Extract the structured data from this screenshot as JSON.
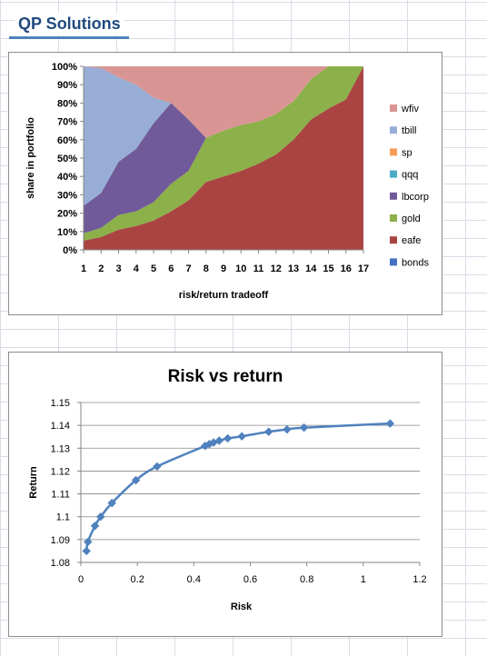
{
  "header": {
    "title": "QP Solutions"
  },
  "chart_data": [
    {
      "type": "area",
      "title": "",
      "xlabel": "risk/return tradeoff",
      "ylabel": "share in portfolio",
      "x": [
        1,
        2,
        3,
        4,
        5,
        6,
        7,
        8,
        9,
        10,
        11,
        12,
        13,
        14,
        15,
        16,
        17
      ],
      "ylim": [
        0,
        100
      ],
      "yticks": [
        "0%",
        "10%",
        "20%",
        "30%",
        "40%",
        "50%",
        "60%",
        "70%",
        "80%",
        "90%",
        "100%"
      ],
      "stack_order": [
        "bonds",
        "eafe",
        "gold",
        "lbcorp",
        "qqq",
        "sp",
        "tbill",
        "wfiv"
      ],
      "legend_order": [
        "wfiv",
        "tbill",
        "sp",
        "qqq",
        "lbcorp",
        "gold",
        "eafe",
        "bonds"
      ],
      "legend_position": "right",
      "series": [
        {
          "name": "bonds",
          "color": "#4472c4",
          "values": [
            0,
            0,
            0,
            0,
            0,
            0,
            0,
            0,
            0,
            0,
            0,
            0,
            0,
            0,
            0,
            0,
            0
          ]
        },
        {
          "name": "eafe",
          "color": "#a94442",
          "values": [
            5,
            7,
            11,
            13,
            16,
            21,
            27,
            37,
            40,
            43,
            47,
            52,
            60,
            71,
            77,
            82,
            100
          ]
        },
        {
          "name": "gold",
          "color": "#8cb04a",
          "values": [
            4,
            5,
            8,
            8,
            10,
            15,
            16,
            24,
            25,
            25,
            23,
            22,
            21,
            22,
            23,
            18,
            0
          ]
        },
        {
          "name": "lbcorp",
          "color": "#715a99",
          "values": [
            15,
            19,
            29,
            34,
            43,
            44,
            28,
            0,
            0,
            0,
            0,
            0,
            0,
            0,
            0,
            0,
            0
          ]
        },
        {
          "name": "qqq",
          "color": "#4aacc6",
          "values": [
            0,
            0,
            0,
            0,
            0,
            0,
            0,
            0,
            0,
            0,
            0,
            0,
            0,
            0,
            0,
            0,
            0
          ]
        },
        {
          "name": "sp",
          "color": "#f59d56",
          "values": [
            0,
            0,
            0,
            0,
            0,
            0,
            0,
            0,
            0,
            0,
            0,
            0,
            0,
            0,
            0,
            0,
            0
          ]
        },
        {
          "name": "tbill",
          "color": "#98add5",
          "values": [
            76,
            68,
            46,
            35,
            14,
            0,
            0,
            0,
            0,
            0,
            0,
            0,
            0,
            0,
            0,
            0,
            0
          ]
        },
        {
          "name": "wfiv",
          "color": "#d89594",
          "values": [
            0,
            1,
            6,
            10,
            17,
            20,
            29,
            39,
            35,
            32,
            30,
            26,
            19,
            7,
            0,
            0,
            0
          ]
        }
      ]
    },
    {
      "type": "scatter",
      "title": "Risk vs return",
      "xlabel": "Risk",
      "ylabel": "Return",
      "xlim": [
        0,
        1.2
      ],
      "ylim": [
        1.08,
        1.15
      ],
      "xticks": [
        "0",
        "0.2",
        "0.4",
        "0.6",
        "0.8",
        "1",
        "1.2"
      ],
      "yticks": [
        "1.08",
        "1.09",
        "1.1",
        "1.11",
        "1.12",
        "1.13",
        "1.14",
        "1.15"
      ],
      "series_color": "#4f81bd",
      "points": [
        {
          "x": 0.02,
          "y": 1.085
        },
        {
          "x": 0.025,
          "y": 1.089
        },
        {
          "x": 0.05,
          "y": 1.096
        },
        {
          "x": 0.07,
          "y": 1.1
        },
        {
          "x": 0.11,
          "y": 1.106
        },
        {
          "x": 0.195,
          "y": 1.116
        },
        {
          "x": 0.27,
          "y": 1.122
        },
        {
          "x": 0.44,
          "y": 1.131
        },
        {
          "x": 0.455,
          "y": 1.1318
        },
        {
          "x": 0.47,
          "y": 1.1325
        },
        {
          "x": 0.49,
          "y": 1.1333
        },
        {
          "x": 0.52,
          "y": 1.1343
        },
        {
          "x": 0.57,
          "y": 1.1352
        },
        {
          "x": 0.665,
          "y": 1.1372
        },
        {
          "x": 0.73,
          "y": 1.1382
        },
        {
          "x": 0.79,
          "y": 1.139
        },
        {
          "x": 1.095,
          "y": 1.1408
        }
      ]
    }
  ]
}
